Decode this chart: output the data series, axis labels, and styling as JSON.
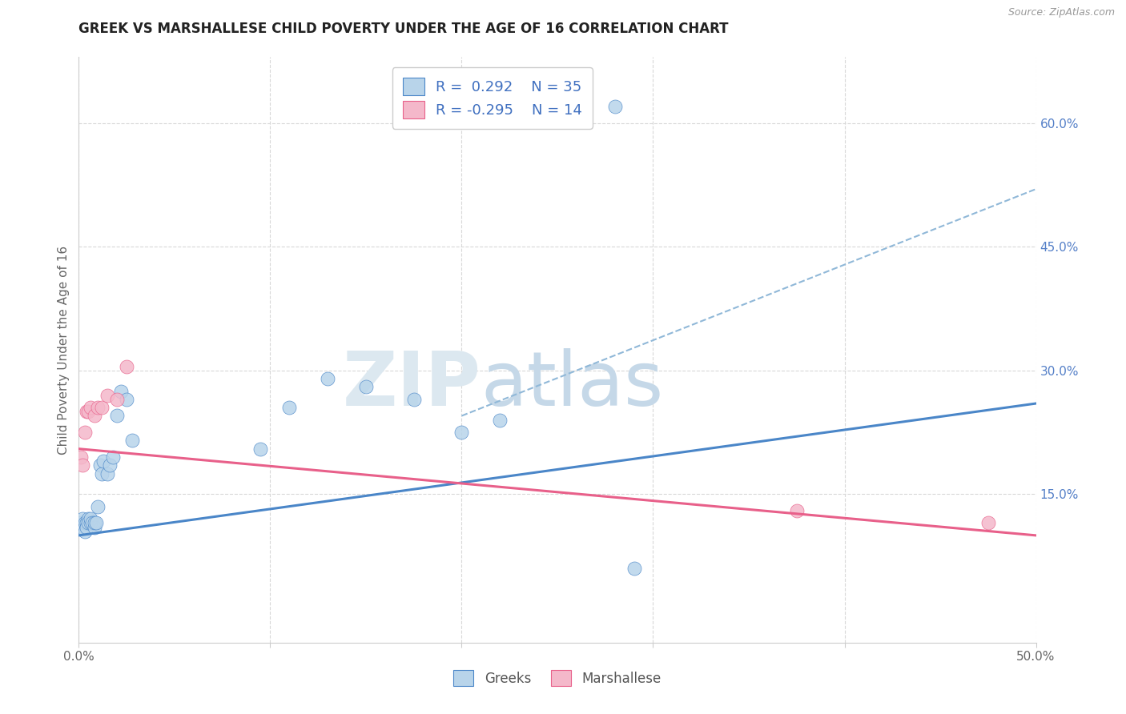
{
  "title": "GREEK VS MARSHALLESE CHILD POVERTY UNDER THE AGE OF 16 CORRELATION CHART",
  "source": "Source: ZipAtlas.com",
  "ylabel": "Child Poverty Under the Age of 16",
  "xlim": [
    0.0,
    0.5
  ],
  "ylim": [
    -0.03,
    0.68
  ],
  "ytick_positions": [
    0.15,
    0.3,
    0.45,
    0.6
  ],
  "ytick_labels": [
    "15.0%",
    "30.0%",
    "45.0%",
    "60.0%"
  ],
  "greek_color": "#b8d4ea",
  "marshallese_color": "#f4b8ca",
  "greek_line_color": "#4a86c8",
  "marshallese_line_color": "#e8608a",
  "dashed_line_color": "#90b8d8",
  "legend_R_greek": "R =  0.292",
  "legend_N_greek": "N = 35",
  "legend_R_marsh": "R = -0.295",
  "legend_N_marsh": "N = 14",
  "greek_x": [
    0.001,
    0.002,
    0.002,
    0.003,
    0.003,
    0.004,
    0.004,
    0.005,
    0.005,
    0.006,
    0.006,
    0.007,
    0.008,
    0.008,
    0.009,
    0.01,
    0.011,
    0.012,
    0.013,
    0.015,
    0.016,
    0.018,
    0.02,
    0.022,
    0.025,
    0.028,
    0.095,
    0.11,
    0.13,
    0.15,
    0.175,
    0.2,
    0.22,
    0.29,
    0.28
  ],
  "greek_y": [
    0.115,
    0.11,
    0.12,
    0.105,
    0.115,
    0.115,
    0.11,
    0.12,
    0.115,
    0.115,
    0.12,
    0.115,
    0.11,
    0.115,
    0.115,
    0.135,
    0.185,
    0.175,
    0.19,
    0.175,
    0.185,
    0.195,
    0.245,
    0.275,
    0.265,
    0.215,
    0.205,
    0.255,
    0.29,
    0.28,
    0.265,
    0.225,
    0.24,
    0.06,
    0.62
  ],
  "marshallese_x": [
    0.001,
    0.002,
    0.003,
    0.004,
    0.005,
    0.006,
    0.008,
    0.01,
    0.012,
    0.015,
    0.02,
    0.025,
    0.375,
    0.475
  ],
  "marshallese_y": [
    0.195,
    0.185,
    0.225,
    0.25,
    0.25,
    0.255,
    0.245,
    0.255,
    0.255,
    0.27,
    0.265,
    0.305,
    0.13,
    0.115
  ],
  "greek_trend_x": [
    0.0,
    0.5
  ],
  "greek_trend_y": [
    0.1,
    0.26
  ],
  "marsh_trend_x": [
    0.0,
    0.5
  ],
  "marsh_trend_y": [
    0.205,
    0.1
  ],
  "dashed_trend_x": [
    0.2,
    0.5
  ],
  "dashed_trend_y": [
    0.245,
    0.52
  ],
  "background_color": "#ffffff",
  "grid_color": "#d8d8d8",
  "title_fontsize": 12,
  "axis_label_fontsize": 11,
  "tick_fontsize": 11,
  "scatter_size": 150
}
